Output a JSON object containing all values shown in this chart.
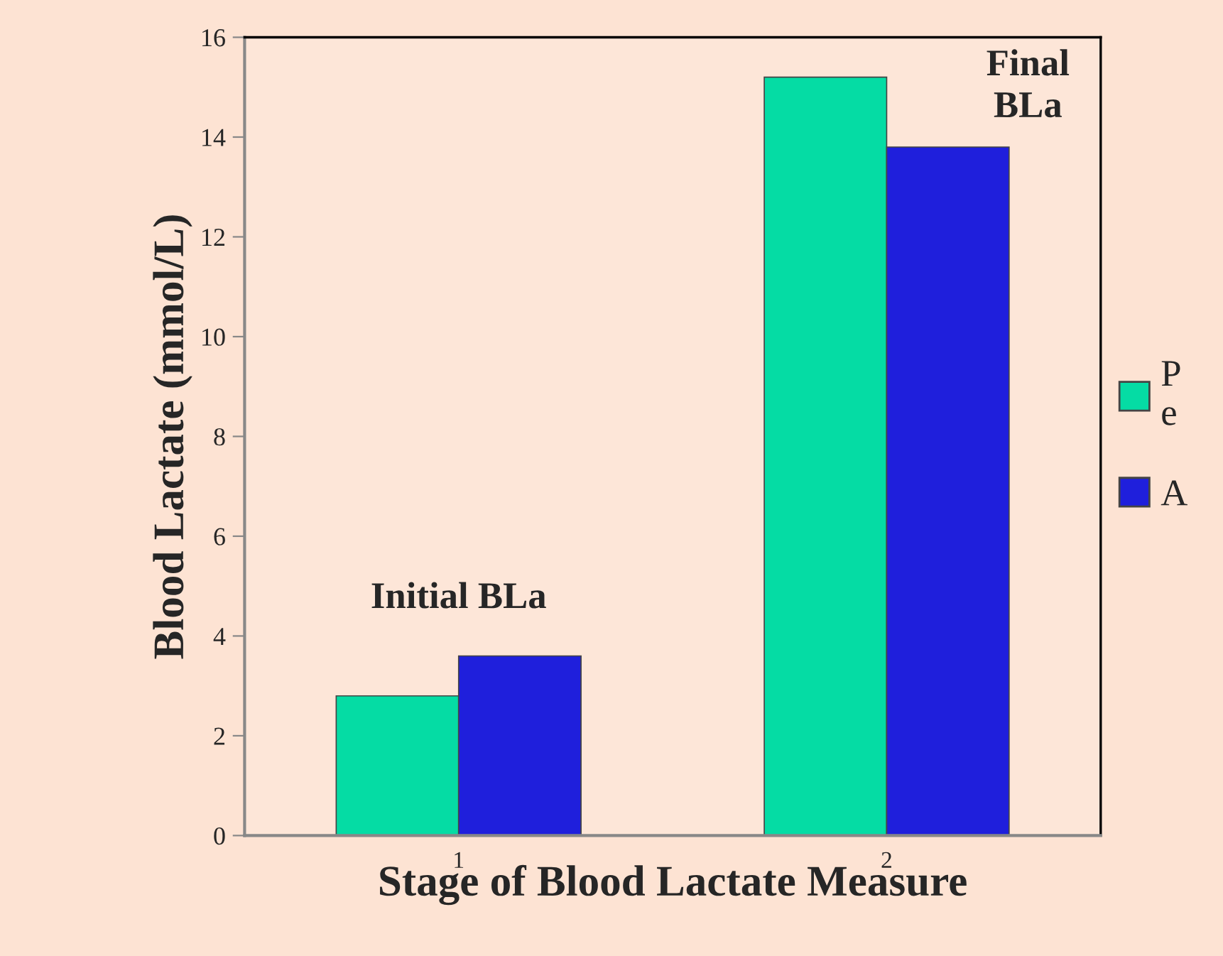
{
  "chart_data": {
    "type": "bar",
    "xlabel": "Stage of Blood Lactate Measure",
    "ylabel": "Blood Lactate (mmol/L)",
    "categories": [
      "1",
      "2"
    ],
    "series": [
      {
        "name": "P\ne",
        "color": "#05dca4",
        "values": [
          2.8,
          15.2
        ]
      },
      {
        "name": "A",
        "color": "#1f1fdc",
        "values": [
          3.6,
          13.8
        ]
      }
    ],
    "ylim": [
      0,
      16
    ],
    "yticks": [
      0,
      2,
      4,
      6,
      8,
      10,
      12,
      14,
      16
    ],
    "grid": false,
    "legend": "right",
    "annotations": [
      "Initial BLa",
      "Final\nBLa"
    ]
  }
}
